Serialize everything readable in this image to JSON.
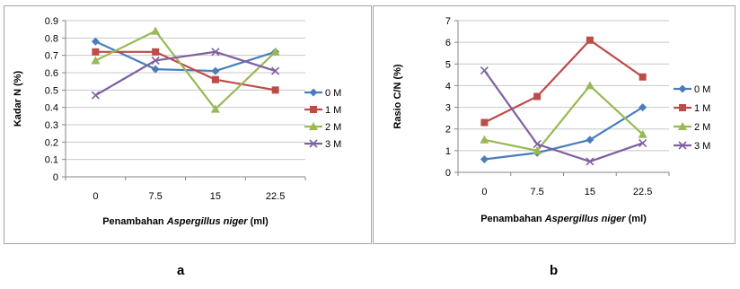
{
  "panel_labels": {
    "a": "a",
    "b": "b"
  },
  "series_colors": {
    "0 M": "#4a7ebb",
    "1 M": "#be4b48",
    "2 M": "#98b954",
    "3 M": "#7d60a0"
  },
  "series_markers": {
    "0 M": "diamond",
    "1 M": "square",
    "2 M": "triangle",
    "3 M": "x"
  },
  "chart_data": [
    {
      "type": "line",
      "id": "a",
      "title": "",
      "xlabel_plain": "Penambahan ",
      "xlabel_italic": "Aspergillus niger",
      "xlabel_suffix": " (ml)",
      "ylabel": "Kadar N (%)",
      "categories": [
        "0",
        "7.5",
        "15",
        "22.5"
      ],
      "ylim": [
        0,
        0.9
      ],
      "yticks": [
        "0",
        "0.1",
        "0.2",
        "0.3",
        "0.4",
        "0.5",
        "0.6",
        "0.7",
        "0.8",
        "0.9"
      ],
      "grid": true,
      "legend": "right",
      "series": [
        {
          "name": "0 M",
          "values": [
            0.78,
            0.62,
            0.61,
            0.72
          ]
        },
        {
          "name": "1 M",
          "values": [
            0.72,
            0.72,
            0.56,
            0.5
          ]
        },
        {
          "name": "2 M",
          "values": [
            0.67,
            0.84,
            0.39,
            0.72
          ]
        },
        {
          "name": "3 M",
          "values": [
            0.47,
            0.67,
            0.72,
            0.61
          ]
        }
      ]
    },
    {
      "type": "line",
      "id": "b",
      "title": "",
      "xlabel_plain": "Penambahan ",
      "xlabel_italic": "Aspergillus niger",
      "xlabel_suffix": " (ml)",
      "ylabel": "Rasio C/N (%)",
      "categories": [
        "0",
        "7.5",
        "15",
        "22.5"
      ],
      "ylim": [
        0,
        7
      ],
      "yticks": [
        "0",
        "1",
        "2",
        "3",
        "4",
        "5",
        "6",
        "7"
      ],
      "grid": true,
      "legend": "right",
      "series": [
        {
          "name": "0 M",
          "values": [
            0.6,
            0.9,
            1.5,
            3.0
          ]
        },
        {
          "name": "1 M",
          "values": [
            2.3,
            3.5,
            6.1,
            4.4
          ]
        },
        {
          "name": "2 M",
          "values": [
            1.5,
            1.0,
            4.0,
            1.75
          ]
        },
        {
          "name": "3 M",
          "values": [
            4.7,
            1.3,
            0.5,
            1.35
          ]
        }
      ]
    }
  ]
}
